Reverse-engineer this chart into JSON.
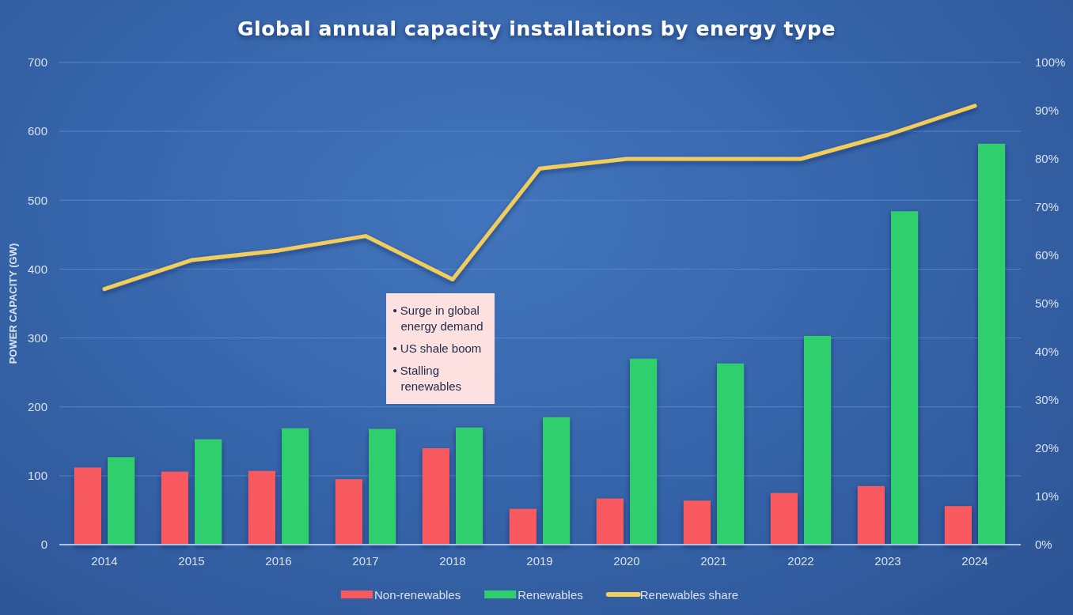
{
  "chart_data": {
    "type": "bar",
    "title": "Global annual capacity installations by energy type",
    "ylabel": "POWER CAPACITY (GW)",
    "categories": [
      "2014",
      "2015",
      "2016",
      "2017",
      "2018",
      "2019",
      "2020",
      "2021",
      "2022",
      "2023",
      "2024"
    ],
    "series": [
      {
        "name": "Non-renewables",
        "color": "#f85a5e",
        "values": [
          112,
          106,
          107,
          95,
          140,
          52,
          67,
          64,
          75,
          85,
          56
        ]
      },
      {
        "name": "Renewables",
        "color": "#2ecf6c",
        "values": [
          127,
          153,
          169,
          168,
          170,
          185,
          270,
          263,
          303,
          484,
          582
        ]
      },
      {
        "name": "Renewables share",
        "type": "line",
        "axis": "y2",
        "color": "#f2cd5c",
        "values": [
          53,
          59,
          61,
          64,
          55,
          78,
          80,
          80,
          80,
          85,
          91
        ]
      }
    ],
    "ylim": [
      0,
      700
    ],
    "yticks": [
      0,
      100,
      200,
      300,
      400,
      500,
      600,
      700
    ],
    "y2lim": [
      0,
      100
    ],
    "y2ticks": [
      {
        "value": 0,
        "label": "0%"
      },
      {
        "value": 10,
        "label": "10%"
      },
      {
        "value": 20,
        "label": "20%"
      },
      {
        "value": 30,
        "label": "30%"
      },
      {
        "value": 40,
        "label": "40%"
      },
      {
        "value": 50,
        "label": "50%"
      },
      {
        "value": 60,
        "label": "60%"
      },
      {
        "value": 70,
        "label": "70%"
      },
      {
        "value": 80,
        "label": "80%"
      },
      {
        "value": 90,
        "label": "90%"
      },
      {
        "value": 100,
        "label": "100%"
      }
    ],
    "grid": "y",
    "legend": "bottom",
    "annotations": [
      "• Surge in global energy demand",
      "• US shale boom",
      "• Stalling renewables"
    ]
  }
}
